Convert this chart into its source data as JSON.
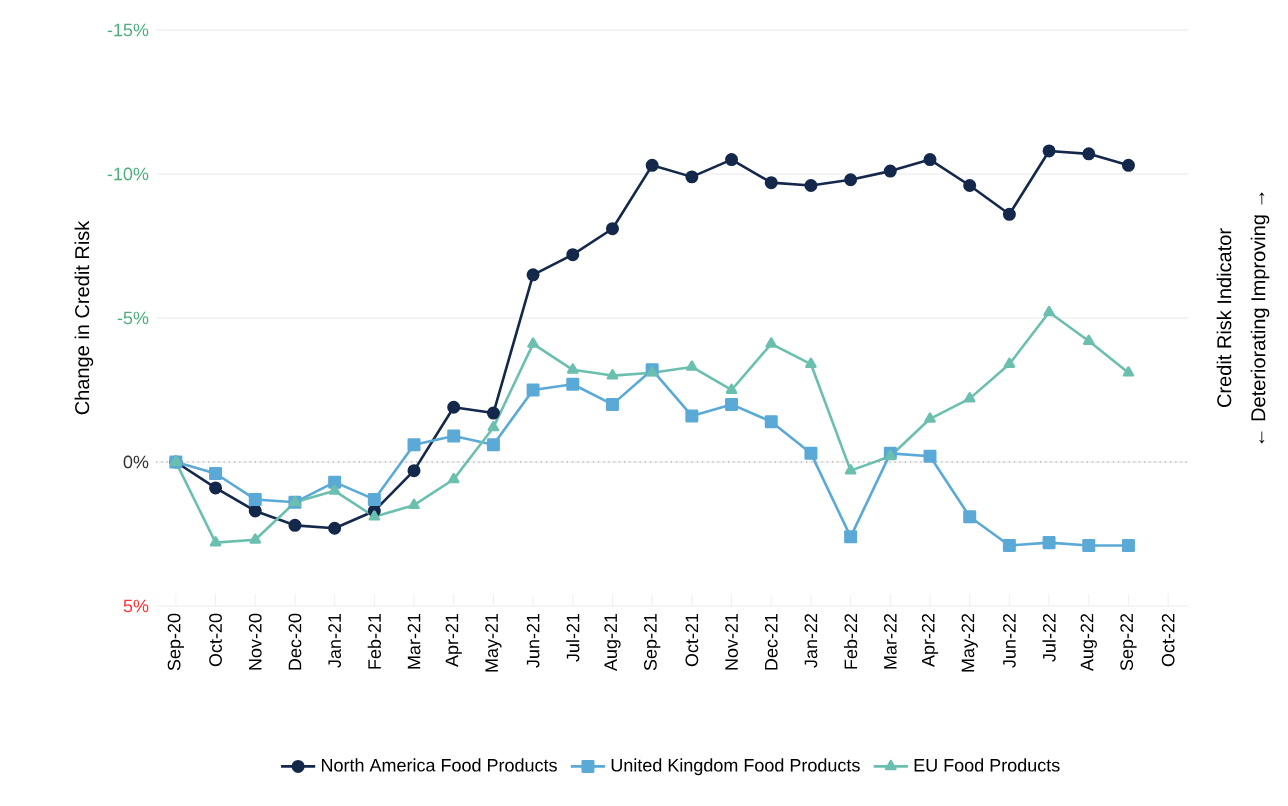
{
  "chart_data": {
    "type": "line",
    "ylabel": "Change in Credit Risk",
    "y2label": "Credit Risk Indicator",
    "annotations": [
      "← Deteriorating     Improving →"
    ],
    "categories": [
      "Sep-20",
      "Oct-20",
      "Nov-20",
      "Dec-20",
      "Jan-21",
      "Feb-21",
      "Mar-21",
      "Apr-21",
      "May-21",
      "Jun-21",
      "Jul-21",
      "Aug-21",
      "Sep-21",
      "Oct-21",
      "Nov-21",
      "Dec-21",
      "Jan-22",
      "Feb-22",
      "Mar-22",
      "Apr-22",
      "May-22",
      "Jun-22",
      "Jul-22",
      "Aug-22",
      "Sep-22",
      "Oct-22"
    ],
    "series": [
      {
        "name": "North America Food Products",
        "color": "#14284b",
        "marker": "circle",
        "values": [
          0,
          0.9,
          1.7,
          2.2,
          2.3,
          1.7,
          0.3,
          -1.9,
          -1.7,
          -6.5,
          -7.2,
          -8.1,
          -10.3,
          -9.9,
          -10.5,
          -9.7,
          -9.6,
          -9.8,
          -10.1,
          -10.5,
          -9.6,
          -8.6,
          -10.8,
          -10.7,
          -10.3,
          null
        ]
      },
      {
        "name": "United Kingdom Food Products",
        "color": "#5aa9d6",
        "marker": "square",
        "values": [
          0,
          0.4,
          1.3,
          1.4,
          0.7,
          1.3,
          -0.6,
          -0.9,
          -0.6,
          -2.5,
          -2.7,
          -2.0,
          -3.2,
          -1.6,
          -2.0,
          -1.4,
          -0.3,
          2.6,
          -0.3,
          -0.2,
          1.9,
          2.9,
          2.8,
          2.9,
          2.9,
          null
        ]
      },
      {
        "name": "EU Food Products",
        "color": "#6bbfae",
        "marker": "triangle",
        "values": [
          0,
          2.8,
          2.7,
          1.4,
          1.0,
          1.9,
          1.5,
          0.6,
          -1.2,
          -4.1,
          -3.2,
          -3.0,
          -3.1,
          -3.3,
          -2.5,
          -4.1,
          -3.4,
          0.3,
          -0.2,
          -1.5,
          -2.2,
          -3.4,
          -5.2,
          -4.2,
          -3.1,
          null
        ]
      }
    ],
    "ylim": [
      5,
      -15
    ],
    "yticks": [
      {
        "value": -15,
        "label": "-15%"
      },
      {
        "value": -10,
        "label": "-10%"
      },
      {
        "value": -5,
        "label": "-5%"
      },
      {
        "value": 0,
        "label": "0%"
      },
      {
        "value": 5,
        "label": "5%"
      }
    ],
    "ref_lines": [
      {
        "axis": "y",
        "value": 0,
        "color": "#999999",
        "line_style": "dotted"
      }
    ],
    "grid": "y",
    "legend": "bottom",
    "line_style": "solid"
  }
}
